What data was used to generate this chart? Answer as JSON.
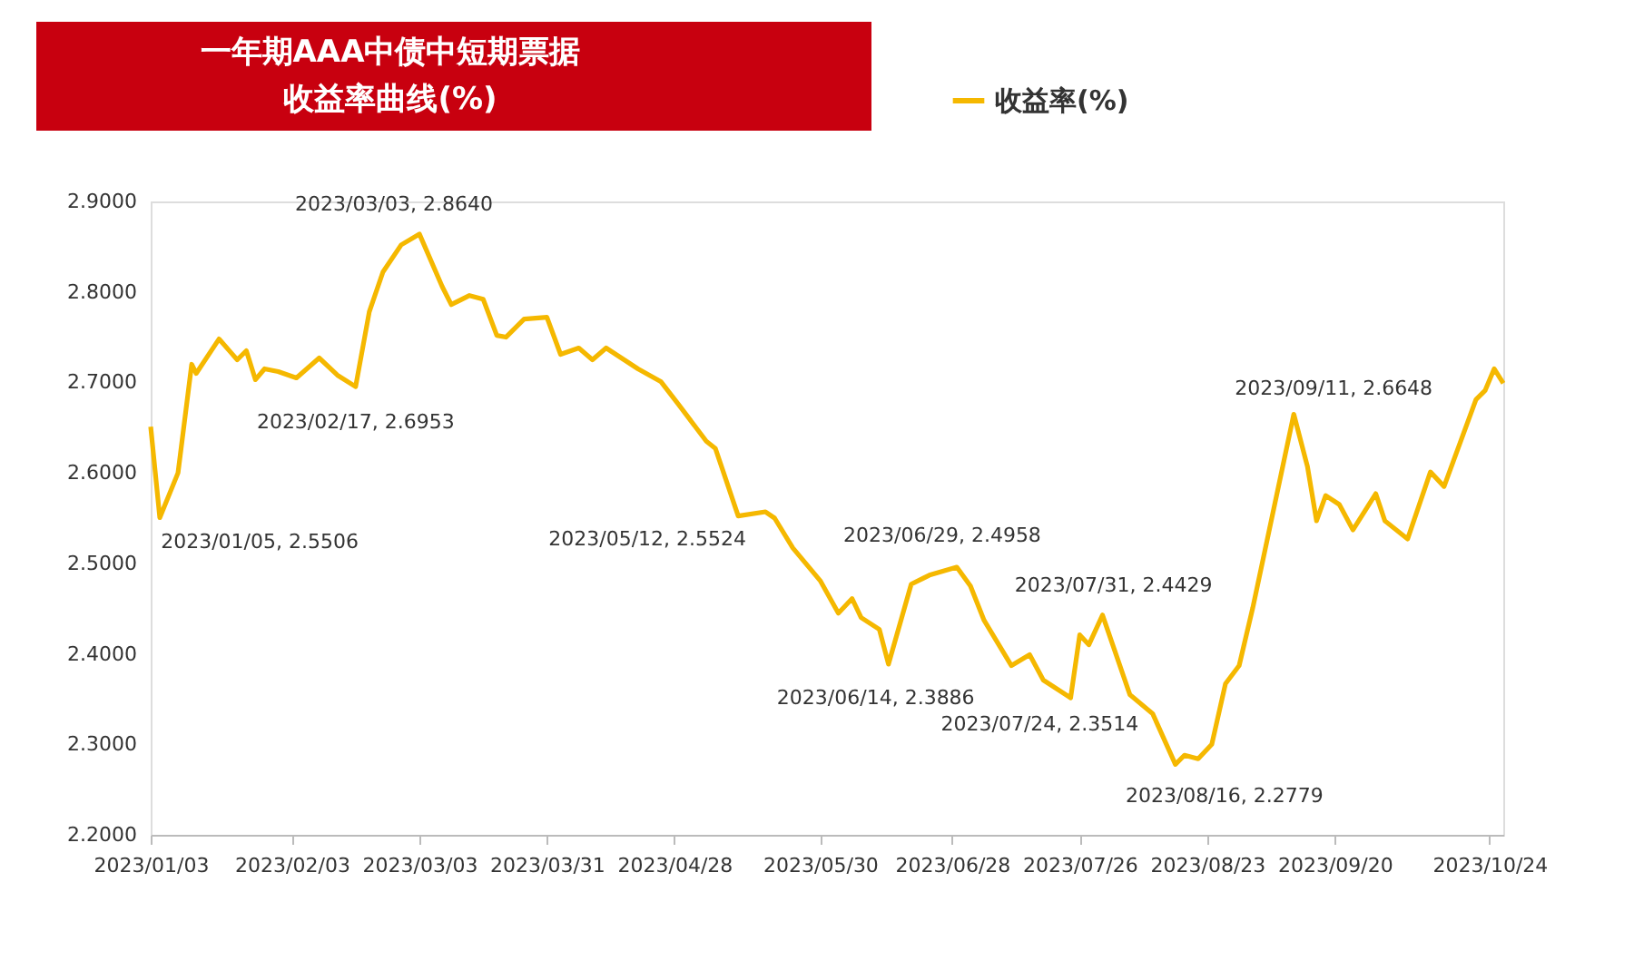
{
  "chart_data": {
    "type": "line",
    "title": "一年期AAA中债中短期票据收益率曲线(%)",
    "x": [
      "2023-01-03",
      "2023-01-05",
      "2023-01-09",
      "2023-01-12",
      "2023-01-13",
      "2023-01-18",
      "2023-01-22",
      "2023-01-24",
      "2023-01-26",
      "2023-01-28",
      "2023-01-31",
      "2023-02-04",
      "2023-02-09",
      "2023-02-13",
      "2023-02-17",
      "2023-02-20",
      "2023-02-23",
      "2023-02-27",
      "2023-03-03",
      "2023-03-08",
      "2023-03-10",
      "2023-03-14",
      "2023-03-17",
      "2023-03-20",
      "2023-03-22",
      "2023-03-26",
      "2023-03-31",
      "2023-04-03",
      "2023-04-07",
      "2023-04-10",
      "2023-04-13",
      "2023-04-20",
      "2023-04-25",
      "2023-04-29",
      "2023-05-05",
      "2023-05-07",
      "2023-05-12",
      "2023-05-18",
      "2023-05-20",
      "2023-05-24",
      "2023-05-30",
      "2023-06-03",
      "2023-06-06",
      "2023-06-08",
      "2023-06-12",
      "2023-06-14",
      "2023-06-19",
      "2023-06-23",
      "2023-06-29",
      "2023-07-02",
      "2023-07-05",
      "2023-07-11",
      "2023-07-15",
      "2023-07-18",
      "2023-07-24",
      "2023-07-26",
      "2023-07-28",
      "2023-07-31",
      "2023-08-06",
      "2023-08-11",
      "2023-08-16",
      "2023-08-18",
      "2023-08-21",
      "2023-08-24",
      "2023-08-27",
      "2023-08-30",
      "2023-09-02",
      "2023-09-11",
      "2023-09-14",
      "2023-09-16",
      "2023-09-18",
      "2023-09-21",
      "2023-09-24",
      "2023-09-29",
      "2023-10-01",
      "2023-10-06",
      "2023-10-11",
      "2023-10-14",
      "2023-10-21",
      "2023-10-23",
      "2023-10-25",
      "2023-10-27"
    ],
    "series": [
      {
        "name": "收益率(%)",
        "color": "#f5b800",
        "values": [
          2.651,
          2.5506,
          2.6,
          2.72,
          2.71,
          2.748,
          2.725,
          2.735,
          2.703,
          2.715,
          2.712,
          2.705,
          2.727,
          2.708,
          2.6953,
          2.778,
          2.822,
          2.852,
          2.864,
          2.806,
          2.786,
          2.796,
          2.792,
          2.752,
          2.75,
          2.77,
          2.772,
          2.731,
          2.738,
          2.725,
          2.738,
          2.715,
          2.701,
          2.675,
          2.635,
          2.627,
          2.5524,
          2.557,
          2.55,
          2.517,
          2.481,
          2.445,
          2.461,
          2.44,
          2.427,
          2.3886,
          2.477,
          2.487,
          2.4958,
          2.475,
          2.437,
          2.387,
          2.399,
          2.371,
          2.3514,
          2.421,
          2.41,
          2.4429,
          2.355,
          2.334,
          2.2779,
          2.288,
          2.284,
          2.3,
          2.367,
          2.387,
          2.451,
          2.6648,
          2.607,
          2.547,
          2.575,
          2.565,
          2.537,
          2.577,
          2.547,
          2.527,
          2.601,
          2.585,
          2.681,
          2.691,
          2.715,
          2.699
        ]
      }
    ],
    "xlim": [
      "2023-01-03",
      "2023-10-27"
    ],
    "xticks": [
      {
        "value": "2023-01-03",
        "label": "2023/01/03"
      },
      {
        "value": "2023-02-03",
        "label": "2023/02/03"
      },
      {
        "value": "2023-03-03",
        "label": "2023/03/03"
      },
      {
        "value": "2023-03-31",
        "label": "2023/03/31"
      },
      {
        "value": "2023-04-28",
        "label": "2023/04/28"
      },
      {
        "value": "2023-05-30",
        "label": "2023/05/30"
      },
      {
        "value": "2023-06-28",
        "label": "2023/06/28"
      },
      {
        "value": "2023-07-26",
        "label": "2023/07/26"
      },
      {
        "value": "2023-08-23",
        "label": "2023/08/23"
      },
      {
        "value": "2023-09-20",
        "label": "2023/09/20"
      },
      {
        "value": "2023-10-24",
        "label": "2023/10/24"
      }
    ],
    "ylim": [
      2.2,
      2.9
    ],
    "yticks": [
      {
        "value": 2.2,
        "label": "2.2000"
      },
      {
        "value": 2.3,
        "label": "2.3000"
      },
      {
        "value": 2.4,
        "label": "2.4000"
      },
      {
        "value": 2.5,
        "label": "2.5000"
      },
      {
        "value": 2.6,
        "label": "2.6000"
      },
      {
        "value": 2.7,
        "label": "2.7000"
      },
      {
        "value": 2.8,
        "label": "2.8000"
      },
      {
        "value": 2.9,
        "label": "2.9000"
      }
    ],
    "annotations": [
      {
        "text": "2023/01/05, 2.5506",
        "x": "2023-01-05",
        "y": 2.5506
      },
      {
        "text": "2023/02/17, 2.6953",
        "x": "2023-02-17",
        "y": 2.6953
      },
      {
        "text": "2023/03/03, 2.8640",
        "x": "2023-03-03",
        "y": 2.864
      },
      {
        "text": "2023/05/12, 2.5524",
        "x": "2023-05-12",
        "y": 2.5524
      },
      {
        "text": "2023/06/14, 2.3886",
        "x": "2023-06-14",
        "y": 2.3886
      },
      {
        "text": "2023/06/29, 2.4958",
        "x": "2023-06-29",
        "y": 2.4958
      },
      {
        "text": "2023/07/24, 2.3514",
        "x": "2023-07-24",
        "y": 2.3514
      },
      {
        "text": "2023/07/31, 2.4429",
        "x": "2023-07-31",
        "y": 2.4429
      },
      {
        "text": "2023/08/16, 2.2779",
        "x": "2023-08-16",
        "y": 2.2779
      },
      {
        "text": "2023/09/11, 2.6648",
        "x": "2023-09-11",
        "y": 2.6648
      }
    ],
    "grid": false,
    "legend": "top right",
    "marker": "none",
    "line_style": "solid"
  }
}
